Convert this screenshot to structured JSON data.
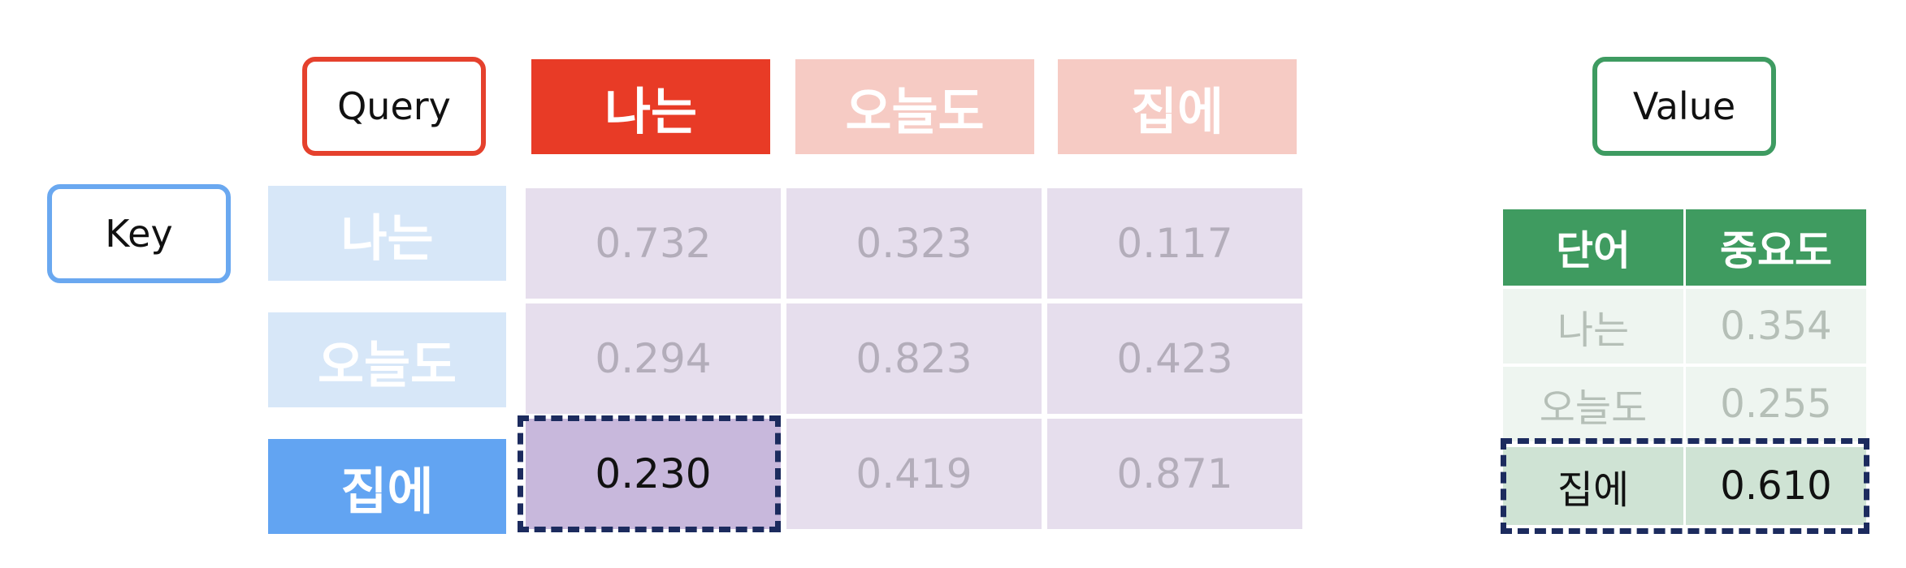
{
  "labels": {
    "query": "Query",
    "key": "Key",
    "value": "Value"
  },
  "query_tokens": [
    "나는",
    "오늘도",
    "집에"
  ],
  "key_tokens": [
    "나는",
    "오늘도",
    "집에"
  ],
  "matrix": {
    "row_0": [
      "0.732",
      "0.323",
      "0.117"
    ],
    "row_1": [
      "0.294",
      "0.823",
      "0.423"
    ],
    "row_2": [
      "0.230",
      "0.419",
      "0.871"
    ]
  },
  "value_table": {
    "headers": [
      "단어",
      "중요도"
    ],
    "rows": [
      [
        "나는",
        "0.354"
      ],
      [
        "오늘도",
        "0.255"
      ],
      [
        "집에",
        "0.610"
      ]
    ]
  },
  "colors": {
    "query": "#e83b26",
    "key": "#62a4f2",
    "value": "#3f9b60",
    "highlight": "#c8b8dc",
    "dashed_border": "#1c2b5e"
  }
}
